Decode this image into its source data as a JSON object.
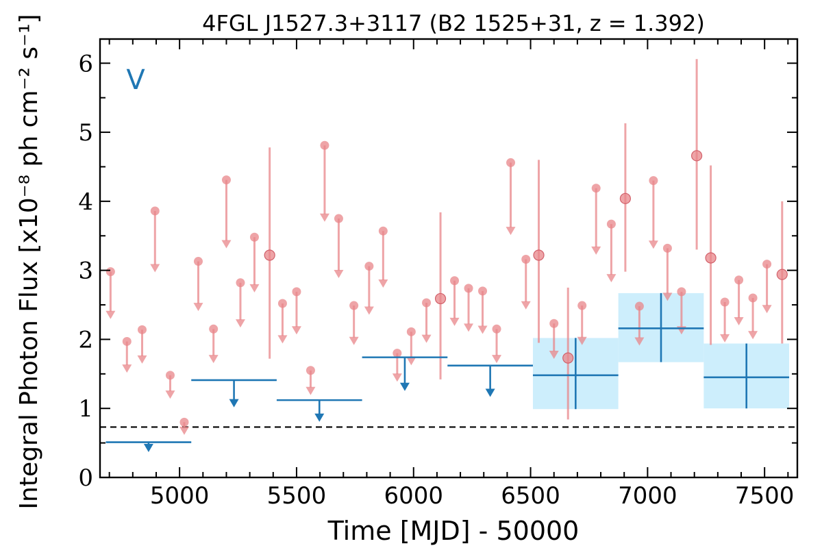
{
  "chart_data": {
    "type": "scatter",
    "title": "4FGL J1527.3+3117 (B2 1525+31, z = 1.392)",
    "xlabel": "Time [MJD] - 50000",
    "ylabel": "Integral Photon Flux [x10⁻⁸ ph cm⁻² s⁻¹]",
    "annotation": "V",
    "xlim": [
      4660,
      7640
    ],
    "ylim": [
      0,
      6.35
    ],
    "x_ticks": [
      5000,
      5500,
      6000,
      6500,
      7000,
      7500
    ],
    "y_ticks": [
      0,
      1,
      2,
      3,
      4,
      5,
      6
    ],
    "grid": false,
    "reference_line": 0.73,
    "colors": {
      "fine": "#e8868a",
      "coarse": "#1f77b4",
      "band": "#cdeefc",
      "reference": "#000000"
    },
    "series": [
      {
        "bin_days": 60,
        "detections": [
          {
            "x": 5385,
            "y": 3.22,
            "lo": 1.72,
            "hi": 4.78
          },
          {
            "x": 6115,
            "y": 2.59,
            "lo": 1.42,
            "hi": 3.84
          },
          {
            "x": 6535,
            "y": 3.22,
            "lo": 1.95,
            "hi": 4.6
          },
          {
            "x": 6660,
            "y": 1.73,
            "lo": 0.84,
            "hi": 2.75
          },
          {
            "x": 6905,
            "y": 4.04,
            "lo": 2.98,
            "hi": 5.13
          },
          {
            "x": 7210,
            "y": 4.66,
            "lo": 3.3,
            "hi": 6.06
          },
          {
            "x": 7270,
            "y": 3.18,
            "lo": 1.92,
            "hi": 4.52
          },
          {
            "x": 7575,
            "y": 2.94,
            "lo": 1.94,
            "hi": 4.0
          }
        ],
        "upper_limits": [
          {
            "x": 4705,
            "y": 2.98
          },
          {
            "x": 4775,
            "y": 1.97
          },
          {
            "x": 4840,
            "y": 2.14
          },
          {
            "x": 4895,
            "y": 3.86
          },
          {
            "x": 4960,
            "y": 1.48
          },
          {
            "x": 5020,
            "y": 0.8
          },
          {
            "x": 5080,
            "y": 3.13
          },
          {
            "x": 5145,
            "y": 2.15
          },
          {
            "x": 5200,
            "y": 4.31
          },
          {
            "x": 5260,
            "y": 2.82
          },
          {
            "x": 5320,
            "y": 3.48
          },
          {
            "x": 5440,
            "y": 2.52
          },
          {
            "x": 5500,
            "y": 2.69
          },
          {
            "x": 5560,
            "y": 1.55
          },
          {
            "x": 5620,
            "y": 4.81
          },
          {
            "x": 5680,
            "y": 3.75
          },
          {
            "x": 5745,
            "y": 2.49
          },
          {
            "x": 5810,
            "y": 3.06
          },
          {
            "x": 5870,
            "y": 3.57
          },
          {
            "x": 5930,
            "y": 1.8
          },
          {
            "x": 5990,
            "y": 2.11
          },
          {
            "x": 6055,
            "y": 2.53
          },
          {
            "x": 6175,
            "y": 2.85
          },
          {
            "x": 6235,
            "y": 2.74
          },
          {
            "x": 6295,
            "y": 2.7
          },
          {
            "x": 6355,
            "y": 2.15
          },
          {
            "x": 6415,
            "y": 4.56
          },
          {
            "x": 6480,
            "y": 3.16
          },
          {
            "x": 6600,
            "y": 2.23
          },
          {
            "x": 6720,
            "y": 2.49
          },
          {
            "x": 6780,
            "y": 4.19
          },
          {
            "x": 6845,
            "y": 3.67
          },
          {
            "x": 6965,
            "y": 2.48
          },
          {
            "x": 7025,
            "y": 4.3
          },
          {
            "x": 7085,
            "y": 3.32
          },
          {
            "x": 7145,
            "y": 2.69
          },
          {
            "x": 7330,
            "y": 2.54
          },
          {
            "x": 7390,
            "y": 2.86
          },
          {
            "x": 7450,
            "y": 2.6
          },
          {
            "x": 7510,
            "y": 3.09
          }
        ]
      },
      {
        "bin_days": 365,
        "upper_limits": [
          {
            "x0": 4685,
            "x1": 5050,
            "y": 0.51
          },
          {
            "x0": 5050,
            "x1": 5415,
            "y": 1.41
          },
          {
            "x0": 5415,
            "x1": 5780,
            "y": 1.12
          },
          {
            "x0": 5780,
            "x1": 6145,
            "y": 1.74
          },
          {
            "x0": 6145,
            "x1": 6510,
            "y": 1.62
          }
        ],
        "detections": [
          {
            "x0": 6510,
            "x1": 6875,
            "y": 1.48,
            "lo": 0.99,
            "hi": 2.02
          },
          {
            "x0": 6875,
            "x1": 7240,
            "y": 2.16,
            "lo": 1.67,
            "hi": 2.67
          },
          {
            "x0": 7240,
            "x1": 7605,
            "y": 1.45,
            "lo": 1.0,
            "hi": 1.94
          }
        ]
      }
    ]
  }
}
